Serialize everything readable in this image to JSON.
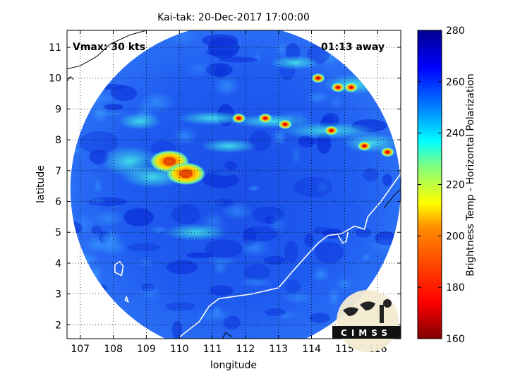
{
  "chart_data": {
    "type": "heatmap",
    "title": "Kai-tak: 20-Dec-2017 17:00:00",
    "xlabel": "longitude",
    "ylabel": "latitude",
    "xlim": [
      106.6,
      116.7
    ],
    "ylim": [
      1.55,
      11.55
    ],
    "x_ticks": [
      "107",
      "108",
      "109",
      "110",
      "111",
      "112",
      "113",
      "114",
      "115",
      "116"
    ],
    "y_ticks": [
      "2",
      "3",
      "4",
      "5",
      "6",
      "7",
      "8",
      "9",
      "10",
      "11"
    ],
    "grid": true,
    "annotations": {
      "vmax": "Vmax: 30 kts",
      "time_offset": "01:13 away"
    },
    "colorbar": {
      "label": "Brightness Temp - Horizontal Polarization",
      "range": [
        160,
        280
      ],
      "ticks": [
        "160",
        "180",
        "200",
        "220",
        "240",
        "260",
        "280"
      ]
    },
    "storm_center": {
      "lon": 110.3,
      "lat": 7.2
    },
    "swath": {
      "center_lon": 111.7,
      "center_lat": 6.4,
      "radius_deg": 5.0
    },
    "cold_cores": [
      {
        "lon": 109.7,
        "lat": 7.3,
        "tb": 178
      },
      {
        "lon": 110.2,
        "lat": 6.9,
        "tb": 182
      },
      {
        "lon": 111.8,
        "lat": 8.7,
        "tb": 180
      },
      {
        "lon": 112.6,
        "lat": 8.7,
        "tb": 185
      },
      {
        "lon": 113.2,
        "lat": 8.5,
        "tb": 195
      },
      {
        "lon": 114.6,
        "lat": 8.3,
        "tb": 182
      },
      {
        "lon": 114.8,
        "lat": 9.7,
        "tb": 180
      },
      {
        "lon": 115.2,
        "lat": 9.7,
        "tb": 175
      },
      {
        "lon": 115.6,
        "lat": 7.8,
        "tb": 182
      },
      {
        "lon": 116.3,
        "lat": 7.6,
        "tb": 188
      },
      {
        "lon": 114.2,
        "lat": 10.0,
        "tb": 200
      }
    ],
    "logo": "CIMSS"
  },
  "colors": {
    "land_line": "#ffffff",
    "coast_outside": "#000000",
    "grid": "#000000"
  }
}
